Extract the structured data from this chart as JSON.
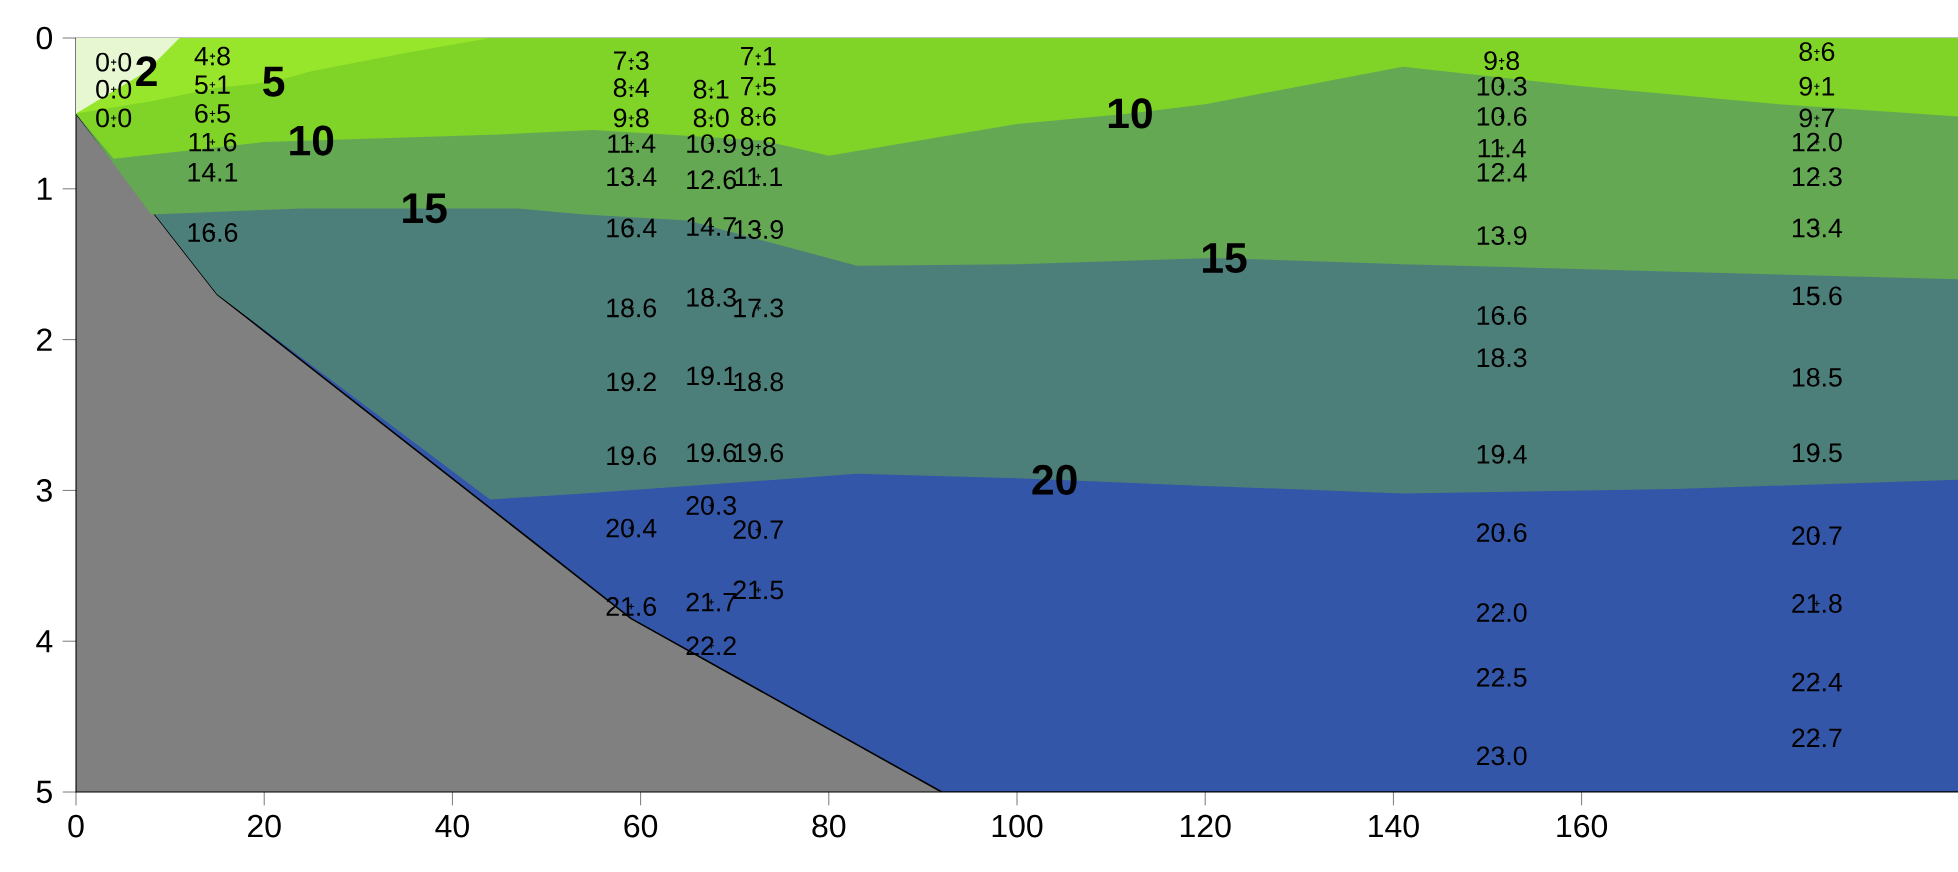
{
  "chart_data": {
    "type": "area",
    "xlim": [
      0,
      200
    ],
    "ylim": [
      5,
      0
    ],
    "xticks": [
      0,
      20,
      40,
      60,
      80,
      100,
      120,
      140,
      160
    ],
    "yticks": [
      0,
      1,
      2,
      3,
      4,
      5
    ],
    "series": [
      {
        "color": "#3456a8",
        "x": [
          0,
          15,
          59,
          92,
          200
        ],
        "values": [
          0.5,
          1.7,
          3.85,
          5,
          5
        ]
      },
      {
        "color": "#4d7f7a",
        "x": [
          0,
          15,
          44,
          54,
          83,
          100,
          104,
          120,
          141,
          170,
          200
        ],
        "values": [
          0.5,
          1.7,
          3.06,
          3.02,
          2.89,
          2.92,
          2.93,
          2.97,
          3.02,
          2.99,
          2.93
        ]
      },
      {
        "color": "#64a854",
        "x": [
          0,
          8,
          24,
          37,
          47,
          54,
          65,
          83,
          100,
          120,
          122,
          141,
          170,
          200
        ],
        "values": [
          0.5,
          1.17,
          1.13,
          1.13,
          1.13,
          1.17,
          1.21,
          1.51,
          1.5,
          1.46,
          1.46,
          1.5,
          1.55,
          1.6
        ]
      },
      {
        "color": "#7fd427",
        "x": [
          0,
          4,
          20,
          25,
          45,
          55,
          73,
          80,
          100,
          112,
          120,
          141,
          160,
          181,
          200
        ],
        "values": [
          0.5,
          0.8,
          0.69,
          0.68,
          0.64,
          0.61,
          0.68,
          0.78,
          0.57,
          0.5,
          0.44,
          0.19,
          0.32,
          0.44,
          0.52
        ]
      },
      {
        "color": "#98e62c",
        "x": [
          0,
          8,
          15,
          21,
          25,
          35,
          44
        ],
        "values": [
          0.5,
          0.42,
          0.33,
          0.29,
          0.22,
          0.1,
          0
        ]
      },
      {
        "color": "#e6f7d2",
        "x": [
          0,
          7.5,
          11
        ],
        "values": [
          0.5,
          0.22,
          0
        ]
      },
      {
        "type": "scatter",
        "color": "#000000",
        "marker": "cross",
        "x": [
          4,
          4,
          4,
          14.5,
          14.5,
          14.5,
          14.5,
          14.5,
          14.5,
          59,
          59,
          59,
          59,
          59,
          59,
          59,
          59,
          59,
          59,
          59,
          67.5,
          67.5,
          67.5,
          67.5,
          67.5,
          67.5,
          67.5,
          67.5,
          67.5,
          67.5,
          67.5,
          72.5,
          72.5,
          72.5,
          72.5,
          72.5,
          72.5,
          72.5,
          72.5,
          72.5,
          72.5,
          72.5,
          151.5,
          151.5,
          151.5,
          151.5,
          151.5,
          151.5,
          151.5,
          151.5,
          151.5,
          151.5,
          151.5,
          151.5,
          151.5,
          185,
          185,
          185,
          185,
          185,
          185,
          185,
          185,
          185,
          185,
          185,
          185,
          185
        ],
        "values": [
          0.16,
          0.34,
          0.53,
          0.12,
          0.31,
          0.5,
          0.69,
          0.89,
          1.29,
          0.15,
          0.33,
          0.53,
          0.7,
          0.92,
          1.26,
          1.79,
          2.28,
          2.77,
          3.25,
          3.77,
          0.34,
          0.53,
          0.7,
          0.94,
          1.25,
          1.72,
          2.24,
          2.75,
          3.1,
          3.74,
          4.03,
          0.12,
          0.32,
          0.52,
          0.72,
          0.92,
          1.27,
          1.79,
          2.28,
          2.75,
          3.26,
          3.66,
          0.15,
          0.32,
          0.52,
          0.73,
          0.89,
          1.31,
          1.84,
          2.12,
          2.76,
          3.28,
          3.81,
          4.24,
          4.76,
          0.09,
          0.32,
          0.53,
          0.69,
          0.92,
          1.26,
          1.71,
          2.25,
          2.75,
          3.3,
          3.75,
          4.27,
          4.64
        ]
      }
    ],
    "annotations": [
      {
        "text": "2",
        "x": 7.5,
        "y": 0.22
      },
      {
        "text": "5",
        "x": 21,
        "y": 0.29
      },
      {
        "text": "10",
        "x": 25,
        "y": 0.68
      },
      {
        "text": "10",
        "x": 112,
        "y": 0.5
      },
      {
        "text": "15",
        "x": 37,
        "y": 1.13
      },
      {
        "text": "15",
        "x": 122,
        "y": 1.46
      },
      {
        "text": "20",
        "x": 104,
        "y": 2.93
      },
      {
        "text": "0.0",
        "x": 4,
        "y": 0.16
      },
      {
        "text": "0.0",
        "x": 4,
        "y": 0.34
      },
      {
        "text": "0.0",
        "x": 4,
        "y": 0.53
      },
      {
        "text": "4.8",
        "x": 14.5,
        "y": 0.12
      },
      {
        "text": "5.1",
        "x": 14.5,
        "y": 0.31
      },
      {
        "text": "6.5",
        "x": 14.5,
        "y": 0.5
      },
      {
        "text": "11.6",
        "x": 14.5,
        "y": 0.69
      },
      {
        "text": "14.1",
        "x": 14.5,
        "y": 0.89
      },
      {
        "text": "16.6",
        "x": 14.5,
        "y": 1.29
      },
      {
        "text": "7.3",
        "x": 59,
        "y": 0.15
      },
      {
        "text": "8.4",
        "x": 59,
        "y": 0.33
      },
      {
        "text": "9.8",
        "x": 59,
        "y": 0.53
      },
      {
        "text": "11.4",
        "x": 59,
        "y": 0.7
      },
      {
        "text": "13.4",
        "x": 59,
        "y": 0.92
      },
      {
        "text": "16.4",
        "x": 59,
        "y": 1.26
      },
      {
        "text": "18.6",
        "x": 59,
        "y": 1.79
      },
      {
        "text": "19.2",
        "x": 59,
        "y": 2.28
      },
      {
        "text": "19.6",
        "x": 59,
        "y": 2.77
      },
      {
        "text": "20.4",
        "x": 59,
        "y": 3.25
      },
      {
        "text": "21.6",
        "x": 59,
        "y": 3.77
      },
      {
        "text": "8.1",
        "x": 67.5,
        "y": 0.34
      },
      {
        "text": "8.0",
        "x": 67.5,
        "y": 0.53
      },
      {
        "text": "10.9",
        "x": 67.5,
        "y": 0.7
      },
      {
        "text": "12.6",
        "x": 67.5,
        "y": 0.94
      },
      {
        "text": "14.7",
        "x": 67.5,
        "y": 1.25
      },
      {
        "text": "18.3",
        "x": 67.5,
        "y": 1.72
      },
      {
        "text": "19.1",
        "x": 67.5,
        "y": 2.24
      },
      {
        "text": "19.6",
        "x": 67.5,
        "y": 2.75
      },
      {
        "text": "20.3",
        "x": 67.5,
        "y": 3.1
      },
      {
        "text": "21.7",
        "x": 67.5,
        "y": 3.74
      },
      {
        "text": "22.2",
        "x": 67.5,
        "y": 4.03
      },
      {
        "text": "7.1",
        "x": 72.5,
        "y": 0.12
      },
      {
        "text": "7.5",
        "x": 72.5,
        "y": 0.32
      },
      {
        "text": "8.6",
        "x": 72.5,
        "y": 0.52
      },
      {
        "text": "9.8",
        "x": 72.5,
        "y": 0.72
      },
      {
        "text": "11.1",
        "x": 72.5,
        "y": 0.92
      },
      {
        "text": "13.9",
        "x": 72.5,
        "y": 1.27
      },
      {
        "text": "17.3",
        "x": 72.5,
        "y": 1.79
      },
      {
        "text": "18.8",
        "x": 72.5,
        "y": 2.28
      },
      {
        "text": "19.6",
        "x": 72.5,
        "y": 2.75
      },
      {
        "text": "20.7",
        "x": 72.5,
        "y": 3.26
      },
      {
        "text": "21.5",
        "x": 72.5,
        "y": 3.66
      },
      {
        "text": "9.8",
        "x": 151.5,
        "y": 0.15
      },
      {
        "text": "10.3",
        "x": 151.5,
        "y": 0.32
      },
      {
        "text": "10.6",
        "x": 151.5,
        "y": 0.52
      },
      {
        "text": "11.4",
        "x": 151.5,
        "y": 0.73
      },
      {
        "text": "12.4",
        "x": 151.5,
        "y": 0.89
      },
      {
        "text": "13.9",
        "x": 151.5,
        "y": 1.31
      },
      {
        "text": "16.6",
        "x": 151.5,
        "y": 1.84
      },
      {
        "text": "18.3",
        "x": 151.5,
        "y": 2.12
      },
      {
        "text": "19.4",
        "x": 151.5,
        "y": 2.76
      },
      {
        "text": "20.6",
        "x": 151.5,
        "y": 3.28
      },
      {
        "text": "22.0",
        "x": 151.5,
        "y": 3.81
      },
      {
        "text": "22.5",
        "x": 151.5,
        "y": 4.24
      },
      {
        "text": "23.0",
        "x": 151.5,
        "y": 4.76
      },
      {
        "text": "8.6",
        "x": 185,
        "y": 0.09
      },
      {
        "text": "9.1",
        "x": 185,
        "y": 0.32
      },
      {
        "text": "9.7",
        "x": 185,
        "y": 0.53
      },
      {
        "text": "12.0",
        "x": 185,
        "y": 0.69
      },
      {
        "text": "12.3",
        "x": 185,
        "y": 0.92
      },
      {
        "text": "13.4",
        "x": 185,
        "y": 1.26
      },
      {
        "text": "15.6",
        "x": 185,
        "y": 1.71
      },
      {
        "text": "18.5",
        "x": 185,
        "y": 2.25
      },
      {
        "text": "19.5",
        "x": 185,
        "y": 2.75
      },
      {
        "text": "20.7",
        "x": 185,
        "y": 3.3
      },
      {
        "text": "21.8",
        "x": 185,
        "y": 3.75
      },
      {
        "text": "22.4",
        "x": 185,
        "y": 4.27
      },
      {
        "text": "22.7",
        "x": 185,
        "y": 4.64
      }
    ]
  }
}
